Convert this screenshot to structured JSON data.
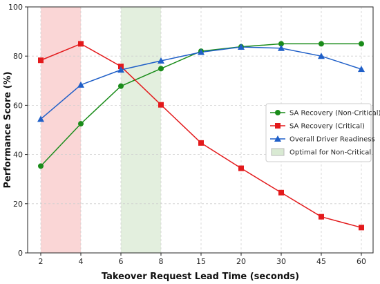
{
  "chart_data": {
    "type": "line",
    "xlabel": "Takeover Request Lead Time (seconds)",
    "ylabel": "Performance Score (%)",
    "categories": [
      "2",
      "4",
      "6",
      "8",
      "15",
      "20",
      "30",
      "45",
      "60"
    ],
    "ylim": [
      0,
      100
    ],
    "yticks": [
      0,
      20,
      40,
      60,
      80,
      100
    ],
    "grid": true,
    "legend_position": "center-right",
    "series": [
      {
        "name": "SA Recovery (Non-Critical)",
        "color": "#1a8c1a",
        "marker": "circle",
        "values": [
          35.3,
          52.5,
          67.8,
          74.9,
          82.0,
          83.8,
          85.0,
          85.0,
          85.0
        ]
      },
      {
        "name": "SA Recovery (Critical)",
        "color": "#e31a1c",
        "marker": "square",
        "values": [
          78.3,
          85.0,
          75.8,
          60.2,
          44.7,
          34.4,
          24.5,
          14.7,
          10.3
        ]
      },
      {
        "name": "Overall Driver Readiness",
        "color": "#1f5fc8",
        "marker": "triangle",
        "values": [
          54.4,
          68.3,
          74.4,
          78.1,
          81.6,
          83.7,
          83.2,
          80.0,
          74.7
        ]
      }
    ],
    "shaded_regions": [
      {
        "from": "2",
        "to": "4",
        "color": "#f8c8c8",
        "legend": ""
      },
      {
        "from": "6",
        "to": "8",
        "color": "#d9ead3",
        "legend": "Optimal for Non-Critical"
      }
    ]
  }
}
